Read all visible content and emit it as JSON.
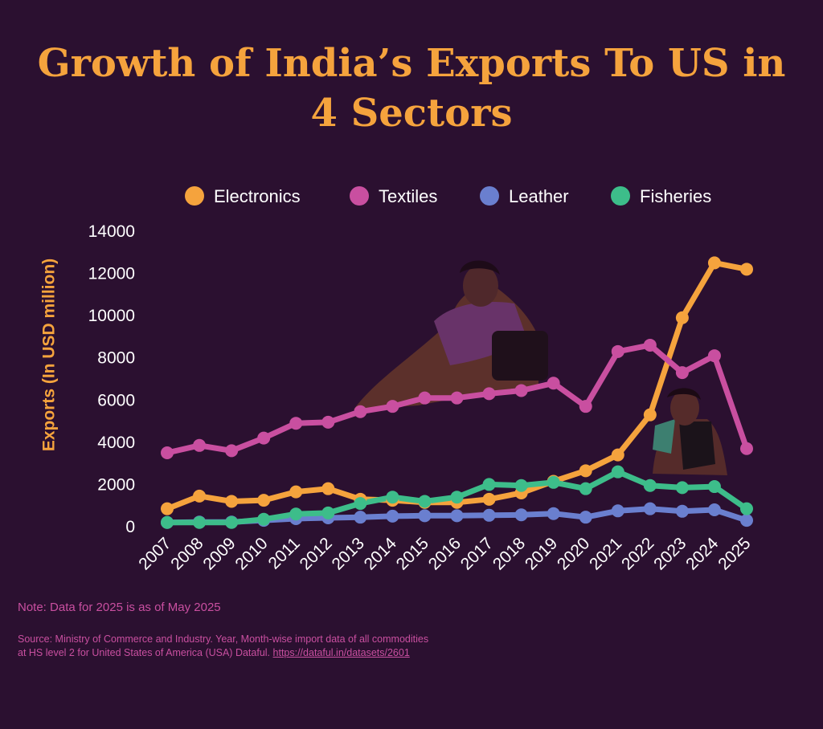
{
  "chart_data": {
    "type": "line",
    "title": "Growth of India’s Exports To US in 4 Sectors",
    "ylabel": "Exports (In USD million)",
    "xlabel": "",
    "ylim": [
      0,
      14000
    ],
    "yticks": [
      0,
      2000,
      4000,
      6000,
      8000,
      10000,
      12000,
      14000
    ],
    "categories": [
      "2007",
      "2008",
      "2009",
      "2010",
      "2011",
      "2012",
      "2013",
      "2014",
      "2015",
      "2016",
      "2017",
      "2018",
      "2019",
      "2020",
      "2021",
      "2022",
      "2023",
      "2024",
      "2025"
    ],
    "legend_position": "top",
    "series": [
      {
        "name": "Electronics",
        "color": "#f5a33d",
        "values": [
          850,
          1450,
          1200,
          1250,
          1650,
          1800,
          1300,
          1250,
          1150,
          1150,
          1300,
          1600,
          2150,
          2650,
          3400,
          5300,
          9900,
          12500,
          12200
        ]
      },
      {
        "name": "Textiles",
        "color": "#c94fa0",
        "values": [
          3500,
          3850,
          3600,
          4200,
          4900,
          4950,
          5450,
          5700,
          6100,
          6100,
          6300,
          6450,
          6800,
          5700,
          8300,
          8600,
          7300,
          8100,
          3700
        ]
      },
      {
        "name": "Leather",
        "color": "#6a7fcf",
        "values": [
          200,
          220,
          220,
          300,
          380,
          420,
          450,
          500,
          520,
          520,
          540,
          560,
          620,
          450,
          750,
          850,
          730,
          800,
          300
        ]
      },
      {
        "name": "Fisheries",
        "color": "#3dbd8a",
        "values": [
          200,
          200,
          200,
          350,
          600,
          650,
          1100,
          1400,
          1200,
          1400,
          2000,
          1950,
          2100,
          1800,
          2600,
          1950,
          1850,
          1900,
          850
        ]
      }
    ]
  },
  "note": "Note: Data for 2025 is as of May 2025",
  "source_text": "Source: Ministry of Commerce and Industry. Year, Month-wise import data of all commodities at HS level 2 for United States of America (USA) Dataful.",
  "source_link": "https://dataful.in/datasets/2601"
}
